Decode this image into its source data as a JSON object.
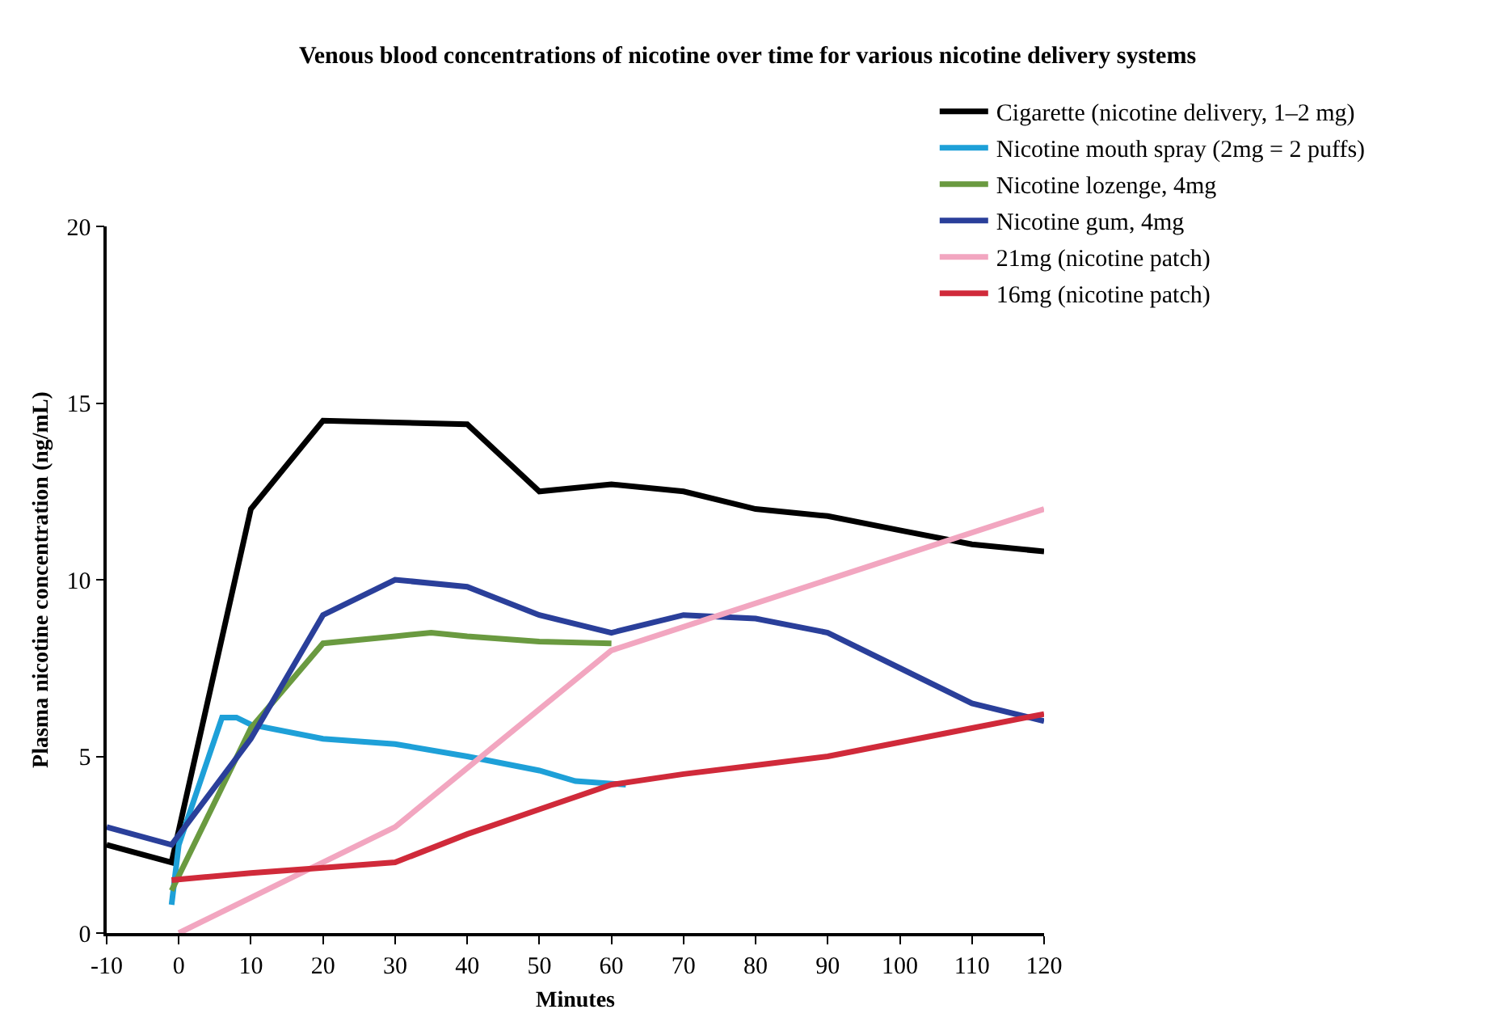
{
  "chart_data": {
    "type": "line",
    "title": "Venous blood concentrations of nicotine over time for various nicotine delivery systems",
    "xlabel": "Minutes",
    "ylabel": "Plasma nicotine concentration (ng/mL)",
    "xlim": [
      -10,
      120
    ],
    "xticks": [
      -10,
      0,
      10,
      20,
      30,
      40,
      50,
      60,
      70,
      80,
      90,
      100,
      110,
      120
    ],
    "ylim": [
      0,
      20
    ],
    "yticks": [
      0,
      5,
      10,
      15,
      20
    ],
    "grid": false,
    "legend": "top right",
    "marker": "none",
    "line_style": "solid",
    "series": [
      {
        "name": "Cigarette (nicotine delivery, 1–2 mg)",
        "color": "#000000",
        "x": [
          -10,
          -1,
          10,
          20,
          30,
          40,
          50,
          60,
          70,
          80,
          90,
          100,
          110,
          120
        ],
        "values": [
          2.5,
          2.0,
          12.0,
          14.5,
          14.45,
          14.4,
          12.5,
          12.7,
          12.5,
          12.0,
          11.8,
          11.4,
          11.0,
          10.8
        ]
      },
      {
        "name": "Nicotine mouth spray (2mg = 2 puffs)",
        "color": "#1ea0d8",
        "x": [
          -1,
          0,
          6,
          8,
          10,
          20,
          30,
          40,
          50,
          55,
          62
        ],
        "values": [
          0.8,
          2.5,
          6.1,
          6.1,
          5.9,
          5.5,
          5.35,
          5.0,
          4.6,
          4.3,
          4.2
        ]
      },
      {
        "name": "Nicotine lozenge, 4mg",
        "color": "#6a9a40",
        "x": [
          -1,
          10,
          20,
          30,
          35,
          40,
          50,
          60
        ],
        "values": [
          1.2,
          5.8,
          8.2,
          8.4,
          8.5,
          8.4,
          8.25,
          8.2
        ]
      },
      {
        "name": "Nicotine gum, 4mg",
        "color": "#2a3f9a",
        "x": [
          -10,
          -1,
          10,
          20,
          30,
          40,
          50,
          60,
          70,
          80,
          90,
          100,
          110,
          120
        ],
        "values": [
          3.0,
          2.5,
          5.5,
          9.0,
          10.0,
          9.8,
          9.0,
          8.5,
          9.0,
          8.9,
          8.5,
          7.5,
          6.5,
          6.0
        ]
      },
      {
        "name": "21mg (nicotine patch)",
        "color": "#f2a6c0",
        "x": [
          0,
          30,
          60,
          120
        ],
        "values": [
          0,
          3.0,
          8.0,
          12.0
        ]
      },
      {
        "name": "16mg (nicotine patch)",
        "color": "#d02a3a",
        "x": [
          -1,
          10,
          20,
          30,
          40,
          50,
          60,
          70,
          80,
          90,
          100,
          110,
          120
        ],
        "values": [
          1.5,
          1.7,
          1.85,
          2.0,
          2.8,
          3.5,
          4.2,
          4.5,
          4.75,
          5.0,
          5.4,
          5.8,
          6.2
        ]
      }
    ]
  }
}
